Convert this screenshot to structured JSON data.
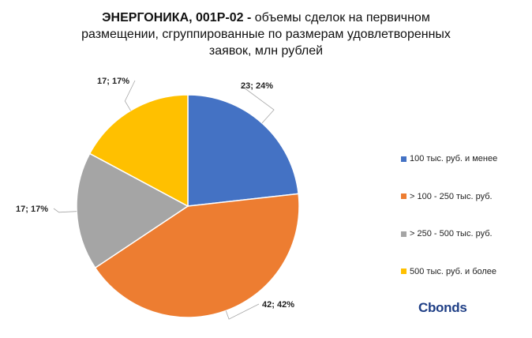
{
  "title": {
    "bold": "ЭНЕРГОНИКА, 001Р-02 -",
    "rest": "объемы сделок на первичном размещении, сгруппированные по размерам удовлетворенных заявок, млн рублей"
  },
  "chart_data": {
    "type": "pie",
    "title": "ЭНЕРГОНИКА, 001Р-02 - объемы сделок на первичном размещении, сгруппированные по размерам удовлетворенных заявок, млн рублей",
    "slices": [
      {
        "name": "100 тыс. руб. и менее",
        "value": 23,
        "percent": 24,
        "label": "23; 24%",
        "color": "#4472c4"
      },
      {
        "name": "> 100 - 250 тыс. руб.",
        "value": 42,
        "percent": 42,
        "label": "42; 42%",
        "color": "#ed7d31"
      },
      {
        "name": "> 250 - 500 тыс. руб.",
        "value": 17,
        "percent": 17,
        "label": "17; 17%",
        "color": "#a5a5a5"
      },
      {
        "name": "500 тыс. руб. и более",
        "value": 17,
        "percent": 17,
        "label": "17; 17%",
        "color": "#ffc000"
      }
    ],
    "legend_position": "right"
  },
  "brand": {
    "logo_text": "Cbonds",
    "color": "#1f3f86"
  }
}
